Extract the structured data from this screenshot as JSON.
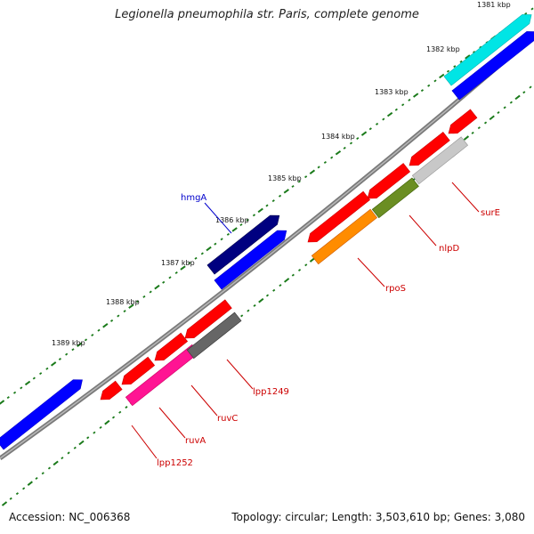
{
  "title": "Legionella pneumophila str. Paris, complete genome",
  "accession_text": "Accession: NC_006368",
  "stats_text": "Topology: circular; Length: 3,503,610 bp; Genes: 3,080",
  "kbp_ticks": [
    {
      "label": "1381 kbp",
      "position_kbp": 1381
    },
    {
      "label": "1382 kbp",
      "position_kbp": 1382
    },
    {
      "label": "1383 kbp",
      "position_kbp": 1383
    },
    {
      "label": "1384 kbp",
      "position_kbp": 1384
    },
    {
      "label": "1385 kbp",
      "position_kbp": 1385
    },
    {
      "label": "1386 kbp",
      "position_kbp": 1386
    },
    {
      "label": "1387 kbp",
      "position_kbp": 1387
    },
    {
      "label": "1388 kbp",
      "position_kbp": 1388
    },
    {
      "label": "1389 kbp",
      "position_kbp": 1389
    }
  ],
  "labeled_genes": [
    {
      "name": "hmgA",
      "color": "#0000cc"
    },
    {
      "name": "surE",
      "color": "#cc0000"
    },
    {
      "name": "nlpD",
      "color": "#cc0000"
    },
    {
      "name": "rpoS",
      "color": "#cc0000"
    },
    {
      "name": "lpp1249",
      "color": "#cc0000"
    },
    {
      "name": "ruvC",
      "color": "#cc0000"
    },
    {
      "name": "ruvA",
      "color": "#cc0000"
    },
    {
      "name": "lpp1252",
      "color": "#cc0000"
    }
  ],
  "colors": {
    "backbone": "#808080",
    "gc_skew_dots": "#1a7a1a",
    "cds_red": "#ff0000",
    "cds_blue": "#0000ff",
    "cds_navy": "#000080",
    "cds_cyan": "#00e5e5",
    "cds_orange": "#ff8c00",
    "cds_olive": "#6b8e23",
    "cds_lightgray": "#c8c8c8",
    "cds_darkgray": "#666666",
    "cds_pink": "#ff1493"
  }
}
